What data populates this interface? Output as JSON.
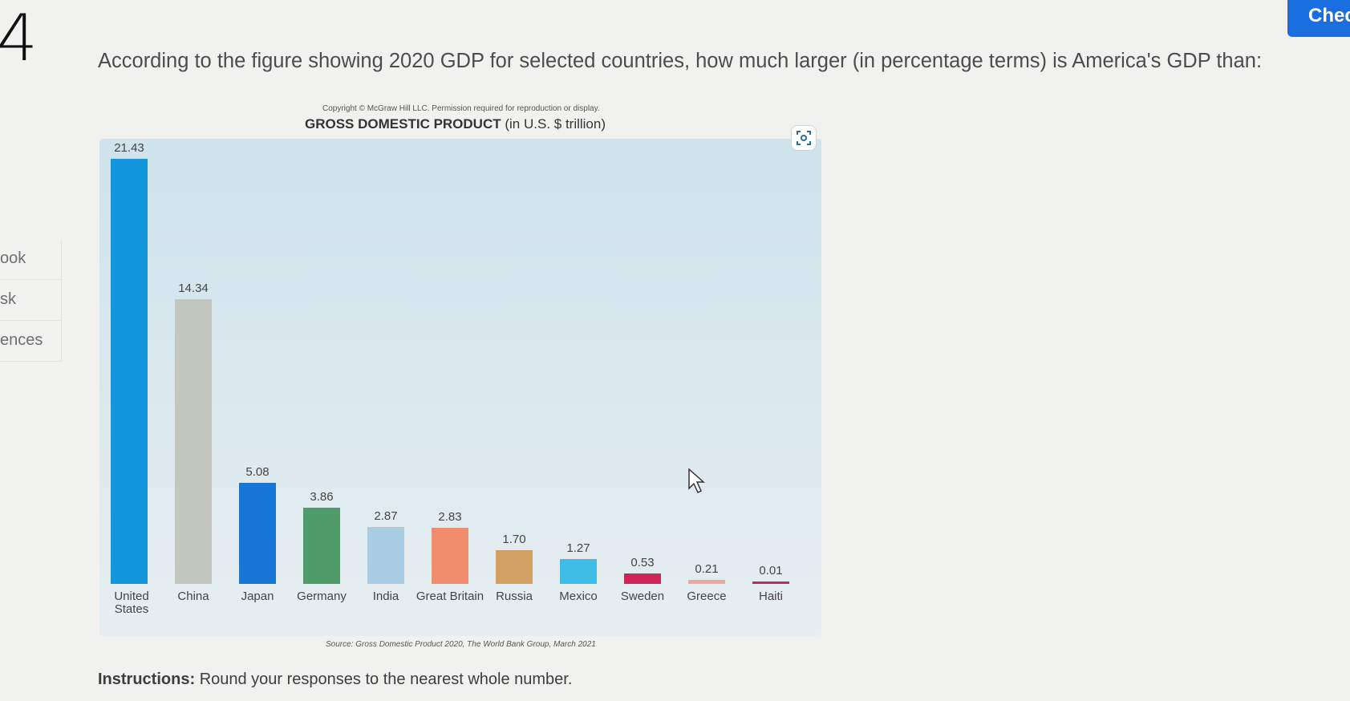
{
  "question_number": "4",
  "sidebar": {
    "items": [
      {
        "label": "ook"
      },
      {
        "label": "sk"
      },
      {
        "label": "ences"
      }
    ]
  },
  "check_button": {
    "label": "Chec"
  },
  "question": {
    "text": "According to the figure showing 2020 GDP for selected countries, how much larger (in percentage terms) is America's GDP than:"
  },
  "figure": {
    "copyright": "Copyright © McGraw Hill LLC. Permission required for reproduction or display.",
    "source": "Source: Gross Domestic Product 2020, The World Bank Group, March 2021"
  },
  "chart_data": {
    "type": "bar",
    "title": "GROSS DOMESTIC PRODUCT",
    "subtitle": "(in U.S. $ trillion)",
    "categories": [
      "United States",
      "China",
      "Japan",
      "Germany",
      "India",
      "Great Britain",
      "Russia",
      "Mexico",
      "Sweden",
      "Greece",
      "Haiti"
    ],
    "values": [
      21.43,
      14.34,
      5.08,
      3.86,
      2.87,
      2.83,
      1.7,
      1.27,
      0.53,
      0.21,
      0.01
    ],
    "value_labels": [
      "21.43",
      "14.34",
      "5.08",
      "3.86",
      "2.87",
      "2.83",
      "1.70",
      "1.27",
      "0.53",
      "0.21",
      "0.01"
    ],
    "colors": [
      "#1297dd",
      "#c4c7bd",
      "#1777d6",
      "#4f9b6a",
      "#a9cde3",
      "#f08d6d",
      "#d1a062",
      "#3bbde6",
      "#cf2457",
      "#f0a7a0",
      "#cf2457"
    ],
    "ylim": [
      0,
      21.43
    ],
    "grid": false,
    "xlabel": "",
    "ylabel": ""
  },
  "instructions": {
    "label": "Instructions:",
    "text": "Round your responses to the nearest whole number."
  }
}
